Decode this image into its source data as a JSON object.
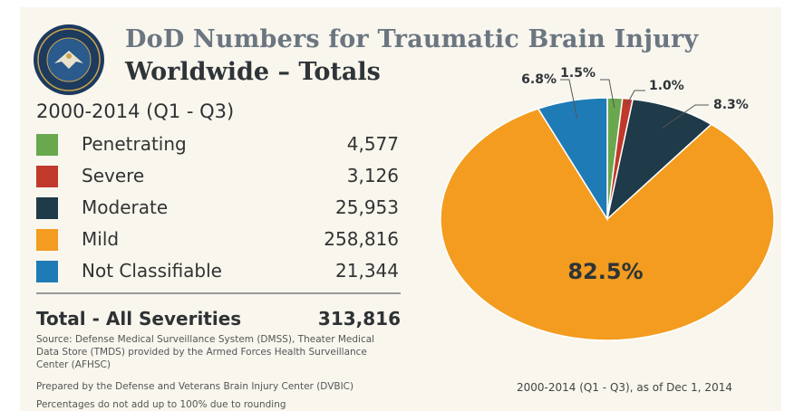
{
  "title_line1": "DoD Numbers for Traumatic Brain Injury",
  "title_line2": "Worldwide – Totals",
  "period": "2000-2014 (Q1 - Q3)",
  "seal_icon": "department-of-defense-seal",
  "chart_data": {
    "type": "pie",
    "categories": [
      "Penetrating",
      "Severe",
      "Moderate",
      "Mild",
      "Not Classifiable"
    ],
    "values": [
      4577,
      3126,
      25953,
      258816,
      21344
    ],
    "value_labels": [
      "4,577",
      "3,126",
      "25,953",
      "258,816",
      "21,344"
    ],
    "percent_labels": [
      "1.5%",
      "1.0%",
      "8.3%",
      "82.5%",
      "6.8%"
    ],
    "colors": [
      "#6aa84f",
      "#c0392b",
      "#1f3a48",
      "#f39c1f",
      "#1f7bb5"
    ],
    "start_angle_deg": 0,
    "direction": "clockwise",
    "total_label": "Total - All Severities",
    "total_value": "313,816",
    "caption": "2000-2014 (Q1 - Q3), as of Dec 1, 2014"
  },
  "source_text": "Source: Defense Medical Surveillance System (DMSS), Theater Medical Data Store (TMDS) provided by the Armed Forces Health Surveillance Center (AFHSC)",
  "prepared_text": "Prepared by the Defense and Veterans Brain Injury Center (DVBIC)",
  "note_text": "Percentages do not add up to 100% due to rounding"
}
